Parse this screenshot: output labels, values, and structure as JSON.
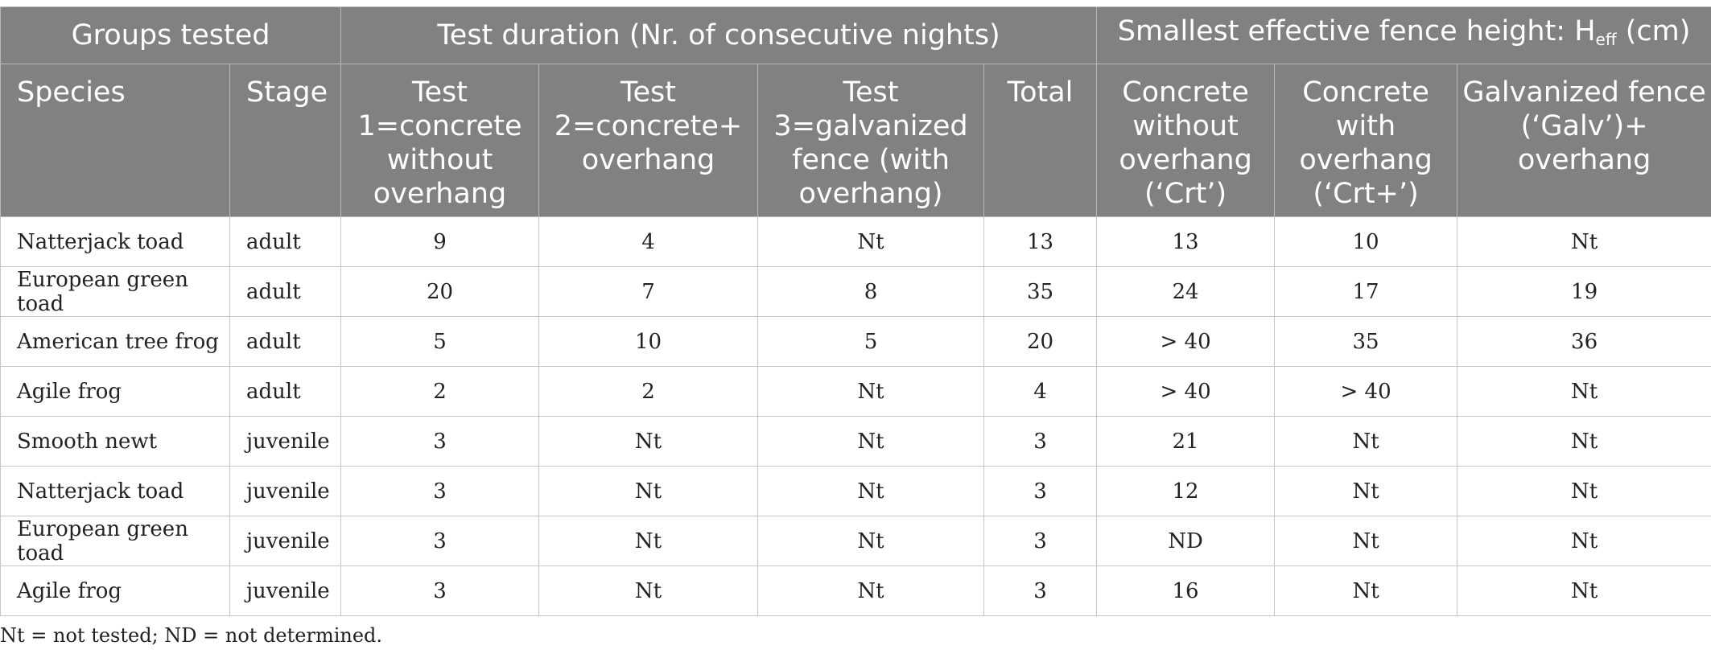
{
  "header": {
    "groups": "Groups tested",
    "duration": "Test duration (Nr. of consecutive nights)",
    "height_prefix": "Smallest effective fence height: H",
    "height_sub": "eff",
    "height_suffix": " (cm)",
    "species": "Species",
    "stage": "Stage",
    "test1": "Test 1=concrete without overhang",
    "test2": "Test 2=concrete+ overhang",
    "test3": "Test 3=galvanized fence (with overhang)",
    "total": "Total",
    "crt": "Concrete without overhang (‘Crt’)",
    "crtplus": "Concrete with overhang (‘Crt+’)",
    "galv": "Galvanized fence (‘Galv’)+ overhang"
  },
  "rows": [
    {
      "species": "Natterjack toad",
      "stage": "adult",
      "t1": "9",
      "t2": "4",
      "t3": "Nt",
      "total": "13",
      "crt": "13",
      "crtp": "10",
      "galv": "Nt"
    },
    {
      "species": "European green toad",
      "stage": "adult",
      "t1": "20",
      "t2": "7",
      "t3": "8",
      "total": "35",
      "crt": "24",
      "crtp": "17",
      "galv": "19"
    },
    {
      "species": "American tree frog",
      "stage": "adult",
      "t1": "5",
      "t2": "10",
      "t3": "5",
      "total": "20",
      "crt": "> 40",
      "crtp": "35",
      "galv": "36"
    },
    {
      "species": "Agile frog",
      "stage": "adult",
      "t1": "2",
      "t2": "2",
      "t3": "Nt",
      "total": "4",
      "crt": "> 40",
      "crtp": "> 40",
      "galv": "Nt"
    },
    {
      "species": "Smooth newt",
      "stage": "juvenile",
      "t1": "3",
      "t2": "Nt",
      "t3": "Nt",
      "total": "3",
      "crt": "21",
      "crtp": "Nt",
      "galv": "Nt"
    },
    {
      "species": "Natterjack toad",
      "stage": "juvenile",
      "t1": "3",
      "t2": "Nt",
      "t3": "Nt",
      "total": "3",
      "crt": "12",
      "crtp": "Nt",
      "galv": "Nt"
    },
    {
      "species": "European green toad",
      "stage": "juvenile",
      "t1": "3",
      "t2": "Nt",
      "t3": "Nt",
      "total": "3",
      "crt": "ND",
      "crtp": "Nt",
      "galv": "Nt"
    },
    {
      "species": "Agile frog",
      "stage": "juvenile",
      "t1": "3",
      "t2": "Nt",
      "t3": "Nt",
      "total": "3",
      "crt": "16",
      "crtp": "Nt",
      "galv": "Nt"
    }
  ],
  "footnote": "Nt = not tested; ND = not determined."
}
